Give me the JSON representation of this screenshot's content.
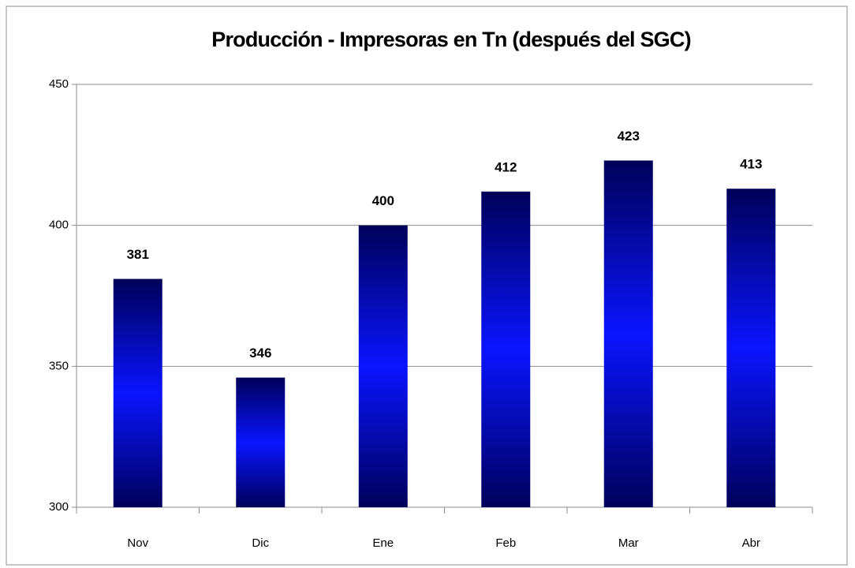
{
  "chart_data": {
    "type": "bar",
    "title": "Producción - Impresoras  en Tn (después del SGC)",
    "categories": [
      "Nov",
      "Dic",
      "Ene",
      "Feb",
      "Mar",
      "Abr"
    ],
    "values": [
      381,
      346,
      400,
      412,
      423,
      413
    ],
    "ylim": [
      300,
      450
    ],
    "yticks": [
      300,
      350,
      400,
      450
    ],
    "grid": true
  }
}
